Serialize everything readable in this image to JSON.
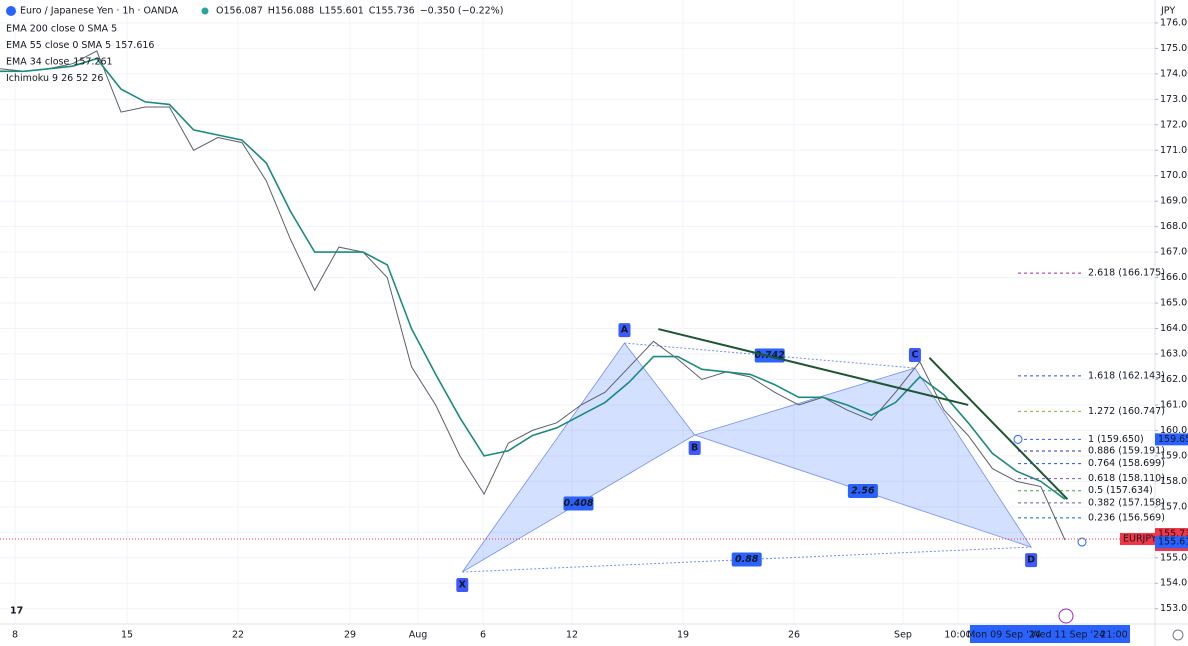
{
  "chart_data": {
    "type": "line",
    "title": "Euro / Japanese Yen · 1h · OANDA",
    "ohlc_text": [
      "O156.087",
      "H156.088",
      "L155.601",
      "C155.736",
      "−0.350 (−0.22%)"
    ],
    "indicators": [
      {
        "name": "EMA 200 close 0 SMA 5"
      },
      {
        "name": "EMA 55 close 0 SMA 5",
        "value_label": "157.616"
      },
      {
        "name": "EMA 34 close",
        "value_label": "157.261"
      },
      {
        "name": "Ichimoku 9 26 52 26"
      }
    ],
    "currency": "JPY",
    "series": [
      {
        "name": "EURJPY",
        "color": "#5d606b",
        "values": [
          174.2,
          174.1,
          174.2,
          174.4,
          174.9,
          172.5,
          172.7,
          172.7,
          171.0,
          171.5,
          171.3,
          169.8,
          167.5,
          165.5,
          167.2,
          167.0,
          166.0,
          162.5,
          161.0,
          159.0,
          157.5,
          159.5,
          160.0,
          160.3,
          161.0,
          161.5,
          162.5,
          163.5,
          162.8,
          162.0,
          162.3,
          162.1,
          161.5,
          161.0,
          161.3,
          160.8,
          160.4,
          161.5,
          162.7,
          160.8,
          159.8,
          158.5,
          158.0,
          157.8,
          155.7
        ]
      },
      {
        "name": "EMA 34",
        "color": "#1b8a7e",
        "values": [
          174.1,
          174.1,
          174.2,
          174.3,
          174.6,
          173.4,
          172.9,
          172.8,
          171.8,
          171.6,
          171.4,
          170.5,
          168.6,
          167.0,
          167.0,
          167.0,
          166.5,
          164.0,
          162.2,
          160.5,
          159.0,
          159.2,
          159.8,
          160.1,
          160.6,
          161.1,
          161.9,
          162.9,
          162.9,
          162.4,
          162.3,
          162.2,
          161.8,
          161.3,
          161.3,
          161.0,
          160.6,
          161.1,
          162.1,
          161.4,
          160.3,
          159.1,
          158.4,
          158.0,
          157.3
        ]
      }
    ],
    "price_tags": [
      {
        "label": "EURJPY",
        "value": 155.736
      },
      {
        "label": "155.73",
        "value": 155.736
      },
      {
        "label": "22:39",
        "value": 155.736
      },
      {
        "label": "155.61",
        "value": 155.61
      },
      {
        "label": "159.65",
        "value": 159.65
      }
    ],
    "pattern_points": [
      {
        "label": "X",
        "index": 19.1,
        "value": 154.44
      },
      {
        "label": "A",
        "index": 25.8,
        "value": 163.43
      },
      {
        "label": "B",
        "index": 28.7,
        "value": 159.82
      },
      {
        "label": "C",
        "index": 37.8,
        "value": 162.45
      },
      {
        "label": "D",
        "index": 42.6,
        "value": 155.42
      }
    ],
    "pattern_ratios": [
      {
        "label": "0.408",
        "from": 0,
        "to": 2
      },
      {
        "label": "0.742",
        "from": 1,
        "to": 3
      },
      {
        "label": "2.56",
        "from": 2,
        "to": 4
      },
      {
        "label": "0.88",
        "from": 0,
        "to": 4
      }
    ],
    "trendlines": [
      {
        "start_index": 27.2,
        "start_value": 163.98,
        "end_index": 40.0,
        "end_value": 161.0
      },
      {
        "start_index": 38.4,
        "start_value": 162.85,
        "end_index": 44.1,
        "end_value": 157.3
      }
    ],
    "fib_levels": [
      {
        "label": "2.618 (166.175)",
        "value": 166.175,
        "color": "#9c27b0"
      },
      {
        "label": "1.618 (162.143)",
        "value": 162.143,
        "color": "#3f51b5"
      },
      {
        "label": "1.272 (160.747)",
        "value": 160.747,
        "color": "#8bb33a"
      },
      {
        "label": "1 (159.650)",
        "value": 159.65,
        "color": "#2962ff"
      },
      {
        "label": "0.886 (159.191)",
        "value": 159.191,
        "color": "#283593"
      },
      {
        "label": "0.764 (158.699)",
        "value": 158.699,
        "color": "#1e53e5"
      },
      {
        "label": "0.618 (158.110)",
        "value": 158.11,
        "color": "#7e57c2"
      },
      {
        "label": "0.5 (157.634)",
        "value": 157.634,
        "color": "#43a047"
      },
      {
        "label": "0.382 (157.158)",
        "value": 157.158,
        "color": "#6a5d9a"
      },
      {
        "label": "0.236 (156.569)",
        "value": 156.569,
        "color": "#1565c0"
      }
    ],
    "current_price": 155.736,
    "time_labels": [
      "8",
      "15",
      "22",
      "29",
      "Aug",
      "6",
      "12",
      "19",
      "26",
      "Sep",
      "10:00"
    ],
    "time_highlight": [
      "Mon 09 Sep '24",
      "Wed 11 Sep '24",
      "21:00"
    ],
    "ylim": [
      152.4,
      176.9
    ],
    "yticks": [
      {
        "value": 153,
        "label": "153.00"
      },
      {
        "value": 154,
        "label": "154.00"
      },
      {
        "value": 155,
        "label": "155.00"
      },
      {
        "value": 156,
        "label": "156.00"
      },
      {
        "value": 157,
        "label": "157.00"
      },
      {
        "value": 158,
        "label": "158.00"
      },
      {
        "value": 159,
        "label": "159.00"
      },
      {
        "value": 160,
        "label": "160.00"
      },
      {
        "value": 161,
        "label": "161.00"
      },
      {
        "value": 162,
        "label": "162.00"
      },
      {
        "value": 163,
        "label": "163.00"
      },
      {
        "value": 164,
        "label": "164.00"
      },
      {
        "value": 165,
        "label": "165.00"
      },
      {
        "value": 166,
        "label": "166.00"
      },
      {
        "value": 167,
        "label": "167.00"
      },
      {
        "value": 168,
        "label": "168.00"
      },
      {
        "value": 169,
        "label": "169.00"
      },
      {
        "value": 170,
        "label": "170.00"
      },
      {
        "value": 171,
        "label": "171.00"
      },
      {
        "value": 172,
        "label": "172.00"
      },
      {
        "value": 173,
        "label": "173.00"
      },
      {
        "value": 174,
        "label": "174.00"
      },
      {
        "value": 175,
        "label": "175.00"
      },
      {
        "value": 176,
        "label": "176.00"
      }
    ],
    "grid": true
  }
}
